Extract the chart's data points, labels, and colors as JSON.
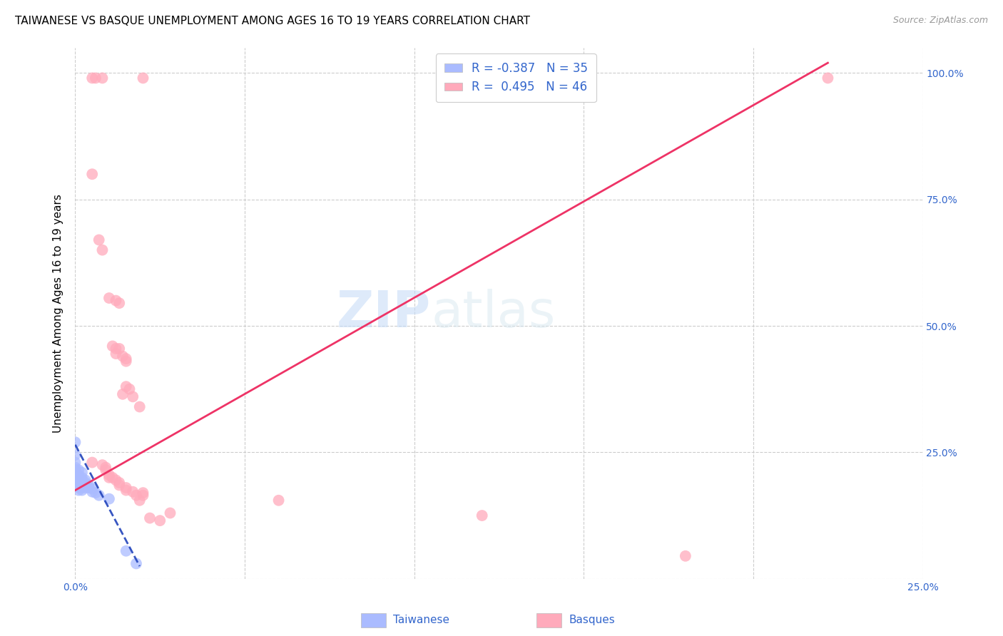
{
  "title": "TAIWANESE VS BASQUE UNEMPLOYMENT AMONG AGES 16 TO 19 YEARS CORRELATION CHART",
  "source": "Source: ZipAtlas.com",
  "ylabel": "Unemployment Among Ages 16 to 19 years",
  "xlim": [
    0.0,
    0.25
  ],
  "ylim": [
    0.0,
    1.05
  ],
  "x_tick_labels": [
    "0.0%",
    "",
    "",
    "",
    "",
    "25.0%"
  ],
  "y_tick_labels_right": [
    "",
    "25.0%",
    "50.0%",
    "75.0%",
    "100.0%"
  ],
  "taiwanese_color": "#aabbff",
  "basque_color": "#ffaabb",
  "taiwanese_line_color": "#2244bb",
  "basque_line_color": "#ee3366",
  "legend_R_taiwanese": "R = -0.387",
  "legend_N_taiwanese": "N = 35",
  "legend_R_basque": "R =  0.495",
  "legend_N_basque": "N = 46",
  "watermark_zip": "ZIP",
  "watermark_atlas": "atlas",
  "title_fontsize": 11,
  "axis_label_fontsize": 11,
  "tick_fontsize": 10,
  "basque_line_x0": 0.0,
  "basque_line_y0": 0.175,
  "basque_line_x1": 0.222,
  "basque_line_y1": 1.02,
  "taiwanese_line_x0": 0.0,
  "taiwanese_line_y0": 0.265,
  "taiwanese_line_x1": 0.019,
  "taiwanese_line_y1": 0.025,
  "taiwanese_points": [
    [
      0.0,
      0.27
    ],
    [
      0.0,
      0.245
    ],
    [
      0.0,
      0.23
    ],
    [
      0.0,
      0.22
    ],
    [
      0.0,
      0.215
    ],
    [
      0.0,
      0.21
    ],
    [
      0.0,
      0.205
    ],
    [
      0.001,
      0.215
    ],
    [
      0.001,
      0.205
    ],
    [
      0.001,
      0.2
    ],
    [
      0.001,
      0.195
    ],
    [
      0.001,
      0.19
    ],
    [
      0.001,
      0.185
    ],
    [
      0.001,
      0.18
    ],
    [
      0.001,
      0.175
    ],
    [
      0.002,
      0.21
    ],
    [
      0.002,
      0.2
    ],
    [
      0.002,
      0.195
    ],
    [
      0.002,
      0.19
    ],
    [
      0.002,
      0.185
    ],
    [
      0.002,
      0.18
    ],
    [
      0.002,
      0.175
    ],
    [
      0.003,
      0.195
    ],
    [
      0.003,
      0.19
    ],
    [
      0.003,
      0.185
    ],
    [
      0.003,
      0.18
    ],
    [
      0.004,
      0.185
    ],
    [
      0.004,
      0.18
    ],
    [
      0.005,
      0.178
    ],
    [
      0.005,
      0.172
    ],
    [
      0.006,
      0.17
    ],
    [
      0.007,
      0.165
    ],
    [
      0.01,
      0.158
    ],
    [
      0.015,
      0.055
    ],
    [
      0.018,
      0.03
    ]
  ],
  "basque_points": [
    [
      0.005,
      0.99
    ],
    [
      0.006,
      0.99
    ],
    [
      0.008,
      0.99
    ],
    [
      0.02,
      0.99
    ],
    [
      0.005,
      0.8
    ],
    [
      0.007,
      0.67
    ],
    [
      0.008,
      0.65
    ],
    [
      0.01,
      0.555
    ],
    [
      0.012,
      0.55
    ],
    [
      0.013,
      0.545
    ],
    [
      0.011,
      0.46
    ],
    [
      0.012,
      0.455
    ],
    [
      0.013,
      0.455
    ],
    [
      0.012,
      0.445
    ],
    [
      0.014,
      0.44
    ],
    [
      0.015,
      0.435
    ],
    [
      0.015,
      0.43
    ],
    [
      0.015,
      0.38
    ],
    [
      0.016,
      0.375
    ],
    [
      0.014,
      0.365
    ],
    [
      0.017,
      0.36
    ],
    [
      0.019,
      0.34
    ],
    [
      0.005,
      0.23
    ],
    [
      0.008,
      0.225
    ],
    [
      0.009,
      0.22
    ],
    [
      0.009,
      0.215
    ],
    [
      0.01,
      0.205
    ],
    [
      0.01,
      0.2
    ],
    [
      0.011,
      0.2
    ],
    [
      0.012,
      0.195
    ],
    [
      0.013,
      0.19
    ],
    [
      0.013,
      0.185
    ],
    [
      0.015,
      0.18
    ],
    [
      0.015,
      0.175
    ],
    [
      0.017,
      0.172
    ],
    [
      0.018,
      0.165
    ],
    [
      0.019,
      0.155
    ],
    [
      0.02,
      0.17
    ],
    [
      0.02,
      0.165
    ],
    [
      0.022,
      0.12
    ],
    [
      0.025,
      0.115
    ],
    [
      0.028,
      0.13
    ],
    [
      0.06,
      0.155
    ],
    [
      0.12,
      0.125
    ],
    [
      0.18,
      0.045
    ],
    [
      0.222,
      0.99
    ]
  ]
}
